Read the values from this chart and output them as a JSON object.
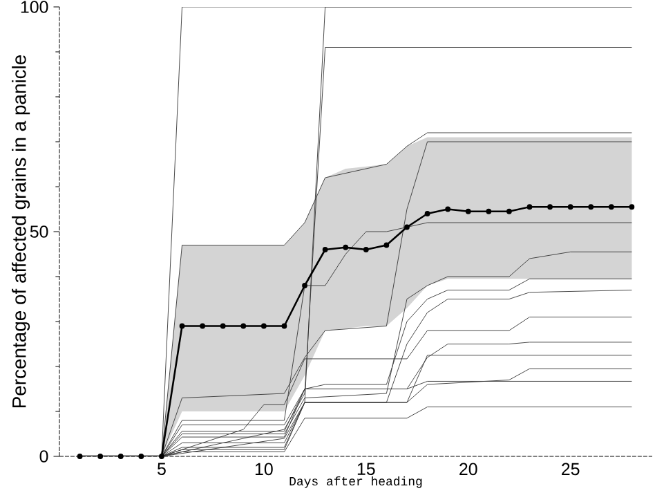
{
  "chart_data": {
    "type": "line",
    "xlabel": "Days after heading",
    "ylabel": "Percentage of affected grains in a panicle",
    "xlim": [
      0,
      29
    ],
    "ylim": [
      0,
      100
    ],
    "xticks": [
      5,
      10,
      15,
      20,
      25
    ],
    "yticks": [
      0,
      50,
      100
    ],
    "x": [
      1,
      2,
      3,
      4,
      5,
      6,
      7,
      8,
      9,
      10,
      11,
      12,
      13,
      14,
      15,
      16,
      17,
      18,
      19,
      20,
      21,
      22,
      23,
      24,
      25,
      26,
      27,
      28
    ],
    "series": [
      {
        "color": "#000000",
        "marker": "circle",
        "values": [
          0,
          0,
          0,
          0,
          0,
          29,
          29,
          29,
          29,
          29,
          29,
          38,
          46,
          46.5,
          46,
          47,
          51,
          54,
          55,
          54.5,
          54.5,
          54.5,
          55.5,
          55.5,
          55.5,
          55.5,
          55.5,
          55.5
        ],
        "lower": [
          0,
          0,
          0,
          0,
          0,
          10,
          10,
          10,
          10,
          10,
          10,
          18,
          28,
          28.5,
          29,
          29,
          33,
          38,
          39.5,
          39.5,
          39.5,
          39.5,
          39.5,
          39.5,
          39.5,
          39.5,
          39.5,
          39.5
        ],
        "upper": [
          0,
          0,
          0,
          0,
          0,
          47,
          47,
          47,
          47,
          47,
          47,
          52,
          62,
          64,
          64.5,
          65,
          69,
          71,
          71,
          71,
          71,
          71,
          71,
          71,
          71,
          71,
          71,
          71
        ]
      },
      {
        "color": "#333333",
        "x": [
          5,
          6,
          28
        ],
        "values": [
          0,
          100,
          100
        ]
      },
      {
        "color": "#333333",
        "x": [
          5,
          11,
          12,
          13,
          28
        ],
        "values": [
          0,
          4,
          12,
          100,
          100
        ]
      },
      {
        "color": "#333333",
        "x": [
          5,
          11,
          12,
          13,
          28
        ],
        "values": [
          0,
          6,
          14,
          91,
          91
        ]
      },
      {
        "color": "#333333",
        "x": [
          5,
          6,
          11,
          12,
          13,
          16,
          17,
          18,
          28
        ],
        "values": [
          0,
          47,
          47,
          52,
          62,
          65,
          69,
          72,
          72
        ]
      },
      {
        "color": "#333333",
        "x": [
          5,
          6,
          11,
          12,
          13,
          16,
          17,
          18,
          28
        ],
        "values": [
          0,
          13,
          14,
          22,
          28,
          29,
          55,
          70,
          70
        ]
      },
      {
        "color": "#333333",
        "x": [
          5,
          6,
          11,
          12,
          13,
          14,
          15,
          16,
          17,
          18,
          28
        ],
        "values": [
          0,
          8,
          8,
          38,
          38,
          45,
          50,
          50,
          51,
          52,
          52
        ]
      },
      {
        "color": "#333333",
        "x": [
          5,
          6,
          11,
          12,
          16,
          17,
          18,
          19,
          22,
          23,
          25,
          28
        ],
        "values": [
          0,
          5,
          5,
          13,
          14,
          35,
          38,
          40,
          40,
          44,
          45.5,
          45.5
        ]
      },
      {
        "color": "#333333",
        "x": [
          5,
          6,
          11,
          12,
          13,
          16,
          17,
          18,
          19,
          22,
          23,
          28
        ],
        "values": [
          0,
          7,
          7,
          15,
          16,
          16,
          30,
          35,
          37,
          37,
          39.5,
          39.5
        ]
      },
      {
        "color": "#333333",
        "x": [
          5,
          6,
          11,
          12,
          16,
          17,
          18,
          19,
          22,
          23,
          28
        ],
        "values": [
          0,
          3,
          3,
          12,
          12,
          25,
          32,
          35,
          35,
          36.5,
          37
        ]
      },
      {
        "color": "#333333",
        "x": [
          5,
          9,
          10,
          11,
          12,
          17,
          18,
          22,
          23,
          28
        ],
        "values": [
          0,
          6,
          11.5,
          11.5,
          21.7,
          21.7,
          28,
          28,
          31,
          31
        ]
      },
      {
        "color": "#333333",
        "x": [
          5,
          6,
          11,
          12,
          17,
          18,
          19,
          22,
          23,
          28
        ],
        "values": [
          0,
          4.3,
          4.3,
          15,
          15,
          22,
          25,
          25,
          25.4,
          25.4
        ]
      },
      {
        "color": "#333333",
        "x": [
          5,
          6,
          11,
          12,
          17,
          18,
          28
        ],
        "values": [
          0,
          2,
          2,
          12,
          12,
          22.5,
          22.5
        ]
      },
      {
        "color": "#333333",
        "x": [
          5,
          6,
          11,
          12,
          17,
          18,
          22,
          23,
          28
        ],
        "values": [
          0,
          1.5,
          1.5,
          12,
          12,
          16,
          17,
          19.5,
          19.5
        ]
      },
      {
        "color": "#333333",
        "x": [
          5,
          6,
          11,
          12,
          17,
          18,
          28
        ],
        "values": [
          0,
          5.6,
          5.6,
          15,
          15,
          16.7,
          16.7
        ]
      },
      {
        "color": "#333333",
        "x": [
          5,
          6,
          11,
          12,
          17,
          18,
          28
        ],
        "values": [
          0,
          1,
          1,
          8.5,
          8.5,
          11,
          11
        ]
      }
    ]
  }
}
